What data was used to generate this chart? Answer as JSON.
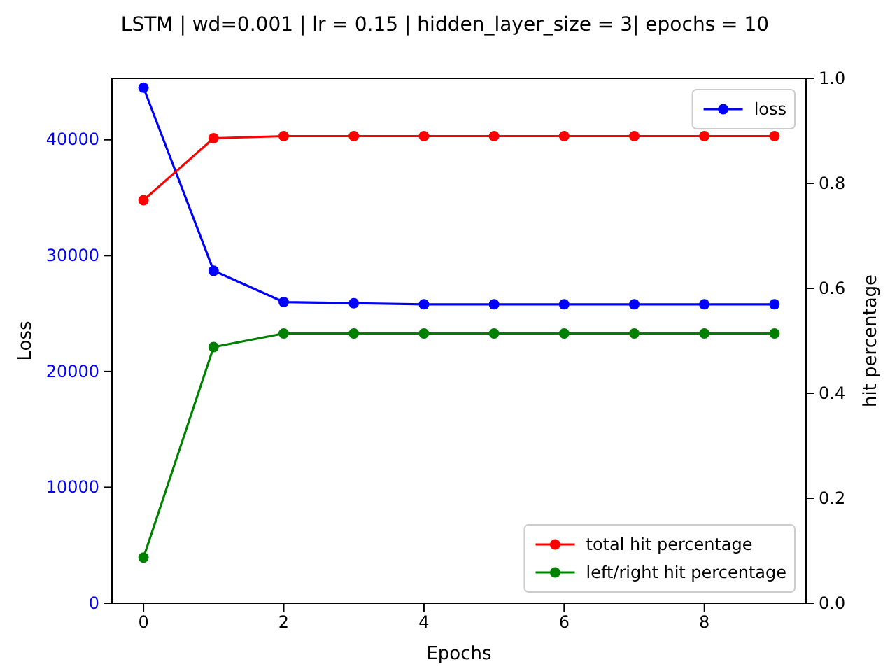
{
  "chart_data": {
    "type": "line",
    "title": "LSTM | wd=0.001 | lr = 0.15 | hidden_layer_size = 3| epochs = 10",
    "xlabel": "Epochs",
    "ylabel": "Loss",
    "y2label": "hit percentage",
    "x": [
      0,
      1,
      2,
      3,
      4,
      5,
      6,
      7,
      8,
      9
    ],
    "series": [
      {
        "name": "loss",
        "color": "#0000ff",
        "values": [
          44500,
          28700,
          26000,
          25900,
          25800,
          25800,
          25800,
          25800,
          25800,
          25800
        ]
      },
      {
        "name": "total hit percentage",
        "color": "#ff0000",
        "axis": "y2",
        "values": [
          0.768,
          0.886,
          0.89,
          0.89,
          0.89,
          0.89,
          0.89,
          0.89,
          0.89,
          0.89
        ]
      },
      {
        "name": "left/right hit percentage",
        "color": "#008000",
        "axis": "y2",
        "values": [
          0.087,
          0.488,
          0.514,
          0.514,
          0.514,
          0.514,
          0.514,
          0.514,
          0.514,
          0.514
        ]
      }
    ],
    "xlim": [
      -0.45,
      9.45
    ],
    "xticks": [
      0,
      2,
      4,
      6,
      8
    ],
    "ylim": [
      0,
      45300
    ],
    "yticks": [
      0,
      10000,
      20000,
      30000,
      40000
    ],
    "y2lim": [
      0,
      1
    ],
    "y2ticks": [
      {
        "value": 0,
        "label": "0.0"
      },
      0.2,
      0.4,
      0.6,
      0.8,
      {
        "value": 1,
        "label": "1.0"
      }
    ],
    "marker": "circle",
    "line_style": "solid",
    "legend": "right",
    "grid": false
  }
}
